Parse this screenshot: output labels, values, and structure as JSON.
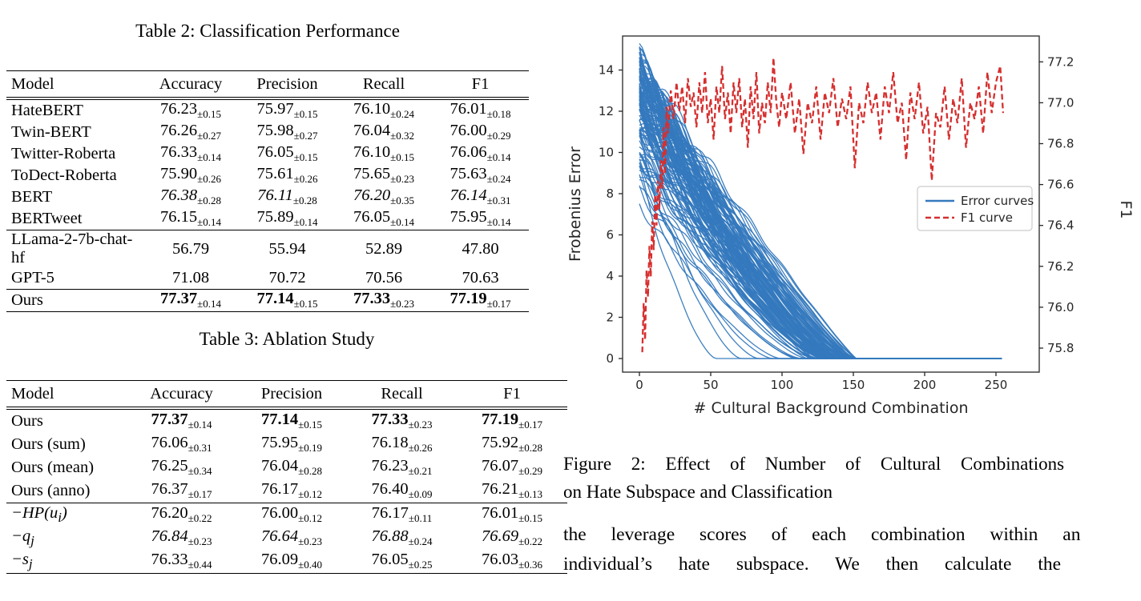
{
  "table2": {
    "caption": "Table 2: Classification Performance",
    "headers": [
      "Model",
      "Accuracy",
      "Precision",
      "Recall",
      "F1"
    ],
    "rows": [
      {
        "model": "HateBERT",
        "style": "normal",
        "cells": [
          [
            "76.23",
            "0.15"
          ],
          [
            "75.97",
            "0.15"
          ],
          [
            "76.10",
            "0.24"
          ],
          [
            "76.01",
            "0.18"
          ]
        ]
      },
      {
        "model": "Twin-BERT",
        "style": "normal",
        "cells": [
          [
            "76.26",
            "0.27"
          ],
          [
            "75.98",
            "0.27"
          ],
          [
            "76.04",
            "0.32"
          ],
          [
            "76.00",
            "0.29"
          ]
        ]
      },
      {
        "model": "Twitter-Roberta",
        "style": "normal",
        "cells": [
          [
            "76.33",
            "0.14"
          ],
          [
            "76.05",
            "0.15"
          ],
          [
            "76.10",
            "0.15"
          ],
          [
            "76.06",
            "0.14"
          ]
        ]
      },
      {
        "model": "ToDect-Roberta",
        "style": "normal",
        "cells": [
          [
            "75.90",
            "0.26"
          ],
          [
            "75.61",
            "0.26"
          ],
          [
            "75.65",
            "0.23"
          ],
          [
            "75.63",
            "0.24"
          ]
        ]
      },
      {
        "model": "BERT",
        "style": "italic",
        "cells": [
          [
            "76.38",
            "0.28"
          ],
          [
            "76.11",
            "0.28"
          ],
          [
            "76.20",
            "0.35"
          ],
          [
            "76.14",
            "0.31"
          ]
        ]
      },
      {
        "model": "BERTweet",
        "style": "normal",
        "cells": [
          [
            "76.15",
            "0.14"
          ],
          [
            "75.89",
            "0.14"
          ],
          [
            "76.05",
            "0.14"
          ],
          [
            "75.95",
            "0.14"
          ]
        ]
      },
      {
        "model": "LLama-2-7b-chat-hf",
        "style": "normal",
        "rule_above": true,
        "cells": [
          [
            "56.79",
            null
          ],
          [
            "55.94",
            null
          ],
          [
            "52.89",
            null
          ],
          [
            "47.80",
            null
          ]
        ]
      },
      {
        "model": "GPT-5",
        "style": "normal",
        "cells": [
          [
            "71.08",
            null
          ],
          [
            "70.72",
            null
          ],
          [
            "70.56",
            null
          ],
          [
            "70.63",
            null
          ]
        ]
      },
      {
        "model": "Ours",
        "style": "bold",
        "rule_above": true,
        "cells": [
          [
            "77.37",
            "0.14"
          ],
          [
            "77.14",
            "0.15"
          ],
          [
            "77.33",
            "0.23"
          ],
          [
            "77.19",
            "0.17"
          ]
        ]
      }
    ]
  },
  "table3": {
    "caption": "Table 3: Ablation Study",
    "headers": [
      "Model",
      "Accuracy",
      "Precision",
      "Recall",
      "F1"
    ],
    "rows": [
      {
        "model": "Ours",
        "style": "bold",
        "cells": [
          [
            "77.37",
            "0.14"
          ],
          [
            "77.14",
            "0.15"
          ],
          [
            "77.33",
            "0.23"
          ],
          [
            "77.19",
            "0.17"
          ]
        ]
      },
      {
        "model": "Ours (sum)",
        "style": "normal",
        "cells": [
          [
            "76.06",
            "0.31"
          ],
          [
            "75.95",
            "0.19"
          ],
          [
            "76.18",
            "0.26"
          ],
          [
            "75.92",
            "0.28"
          ]
        ]
      },
      {
        "model": "Ours (mean)",
        "style": "normal",
        "cells": [
          [
            "76.25",
            "0.34"
          ],
          [
            "76.04",
            "0.28"
          ],
          [
            "76.23",
            "0.21"
          ],
          [
            "76.07",
            "0.29"
          ]
        ]
      },
      {
        "model": "Ours (anno)",
        "style": "normal",
        "cells": [
          [
            "76.37",
            "0.17"
          ],
          [
            "76.17",
            "0.12"
          ],
          [
            "76.40",
            "0.09"
          ],
          [
            "76.21",
            "0.13"
          ]
        ]
      },
      {
        "model": "−HP(u_i)",
        "math": true,
        "style": "normal",
        "rule_above": true,
        "cells": [
          [
            "76.20",
            "0.22"
          ],
          [
            "76.00",
            "0.12"
          ],
          [
            "76.17",
            "0.11"
          ],
          [
            "76.01",
            "0.15"
          ]
        ]
      },
      {
        "model": "−q_j",
        "math": true,
        "style": "italic",
        "cells": [
          [
            "76.84",
            "0.23"
          ],
          [
            "76.64",
            "0.23"
          ],
          [
            "76.88",
            "0.24"
          ],
          [
            "76.69",
            "0.22"
          ]
        ]
      },
      {
        "model": "−s_j",
        "math": true,
        "style": "normal",
        "cells": [
          [
            "76.33",
            "0.44"
          ],
          [
            "76.09",
            "0.40"
          ],
          [
            "76.05",
            "0.25"
          ],
          [
            "76.03",
            "0.36"
          ]
        ]
      }
    ]
  },
  "figure": {
    "caption_line1": "Figure 2: Effect of Number of Cultural Combinations",
    "caption_line2": "on Hate Subspace and Classification"
  },
  "body_text": {
    "line1": "the leverage scores of each combination within an",
    "line2": "individual’s hate subspace. We then calculate the"
  },
  "chart_data": {
    "type": "line",
    "xlabel": "# Cultural Background Combination",
    "ylabel_left": "Frobenius Error",
    "ylabel_right": "F1",
    "x_ticks": [
      0,
      50,
      100,
      150,
      200,
      250
    ],
    "y_ticks_left": [
      0,
      2,
      4,
      6,
      8,
      10,
      12,
      14
    ],
    "y_ticks_right": [
      75.8,
      76.0,
      76.2,
      76.4,
      76.6,
      76.8,
      77.0,
      77.2
    ],
    "xlim": [
      -12,
      283
    ],
    "ylim_left": [
      -0.7,
      15.6
    ],
    "ylim_right": [
      75.68,
      77.32
    ],
    "grid": false,
    "legend_position": "center-right",
    "legend": [
      {
        "label": "Error curves",
        "color": "#3579be",
        "dash": false
      },
      {
        "label": "F1 curve",
        "color": "#d62f2f",
        "dash": true
      }
    ],
    "colors": {
      "error_curves": "#3579be",
      "f1_curve": "#d62f2f",
      "axis": "#262626"
    },
    "error_curves": {
      "note": "Dense family of ~130 monotonically decreasing Frobenius-error curves: start between ~7.3 and ~14.9 at x=0, decay to 0 between x≈40 and x≈150 (higher-starting curves reach zero later), then remain flat at 0 through x≈255.",
      "count": 130,
      "seed": 7,
      "x_step": 2,
      "x_max": 255,
      "start_range": [
        7.3,
        14.9
      ],
      "end_x_main": [
        100,
        152
      ],
      "end_x_early": [
        40,
        100
      ],
      "early_fraction": 0.08
    },
    "f1_curve": {
      "note": "Noisy dashed F1 curve: climbs from ~75.78 at x≈2 to ~77.0 by x≈20, then fluctuates between ~76.6 and ~77.2 out to x=255.",
      "points": [
        [
          2,
          75.78
        ],
        [
          3,
          76.02
        ],
        [
          4,
          75.84
        ],
        [
          5,
          76.18
        ],
        [
          6,
          76.05
        ],
        [
          7,
          76.3
        ],
        [
          8,
          76.15
        ],
        [
          9,
          76.42
        ],
        [
          10,
          76.28
        ],
        [
          11,
          76.55
        ],
        [
          12,
          76.4
        ],
        [
          13,
          76.62
        ],
        [
          14,
          76.48
        ],
        [
          15,
          76.72
        ],
        [
          16,
          76.58
        ],
        [
          17,
          76.88
        ],
        [
          18,
          76.65
        ],
        [
          19,
          76.98
        ],
        [
          20,
          76.85
        ],
        [
          22,
          77.06
        ],
        [
          24,
          76.92
        ],
        [
          26,
          77.1
        ],
        [
          28,
          76.96
        ],
        [
          30,
          77.08
        ],
        [
          32,
          76.9
        ],
        [
          34,
          77.12
        ],
        [
          36,
          76.98
        ],
        [
          38,
          77.05
        ],
        [
          40,
          76.88
        ],
        [
          42,
          77.1
        ],
        [
          44,
          76.95
        ],
        [
          46,
          77.15
        ],
        [
          48,
          76.9
        ],
        [
          50,
          77.02
        ],
        [
          52,
          76.82
        ],
        [
          54,
          77.08
        ],
        [
          56,
          76.95
        ],
        [
          58,
          77.18
        ],
        [
          60,
          76.92
        ],
        [
          62,
          77.05
        ],
        [
          64,
          76.85
        ],
        [
          66,
          77.1
        ],
        [
          68,
          76.95
        ],
        [
          70,
          77.12
        ],
        [
          72,
          76.88
        ],
        [
          74,
          77.02
        ],
        [
          76,
          76.78
        ],
        [
          78,
          77.08
        ],
        [
          80,
          76.92
        ],
        [
          82,
          77.15
        ],
        [
          84,
          76.85
        ],
        [
          86,
          77.0
        ],
        [
          88,
          76.9
        ],
        [
          90,
          77.1
        ],
        [
          92,
          76.95
        ],
        [
          94,
          77.22
        ],
        [
          96,
          77.0
        ],
        [
          98,
          76.88
        ],
        [
          100,
          77.05
        ],
        [
          103,
          76.92
        ],
        [
          106,
          77.1
        ],
        [
          109,
          76.85
        ],
        [
          112,
          77.02
        ],
        [
          115,
          76.75
        ],
        [
          118,
          77.0
        ],
        [
          121,
          76.9
        ],
        [
          124,
          77.08
        ],
        [
          127,
          76.82
        ],
        [
          130,
          77.05
        ],
        [
          133,
          76.95
        ],
        [
          136,
          77.12
        ],
        [
          139,
          76.88
        ],
        [
          142,
          77.02
        ],
        [
          145,
          76.92
        ],
        [
          148,
          77.08
        ],
        [
          151,
          76.68
        ],
        [
          154,
          77.0
        ],
        [
          157,
          76.9
        ],
        [
          160,
          77.1
        ],
        [
          163,
          76.95
        ],
        [
          166,
          77.05
        ],
        [
          169,
          76.82
        ],
        [
          172,
          77.08
        ],
        [
          175,
          76.95
        ],
        [
          178,
          77.15
        ],
        [
          181,
          76.9
        ],
        [
          184,
          77.0
        ],
        [
          187,
          76.72
        ],
        [
          190,
          77.05
        ],
        [
          193,
          76.92
        ],
        [
          196,
          77.1
        ],
        [
          199,
          76.85
        ],
        [
          202,
          76.98
        ],
        [
          205,
          76.62
        ],
        [
          208,
          76.95
        ],
        [
          211,
          76.88
        ],
        [
          214,
          77.08
        ],
        [
          217,
          76.82
        ],
        [
          220,
          77.02
        ],
        [
          223,
          76.9
        ],
        [
          226,
          77.12
        ],
        [
          229,
          76.78
        ],
        [
          232,
          77.0
        ],
        [
          235,
          76.92
        ],
        [
          238,
          77.08
        ],
        [
          241,
          76.85
        ],
        [
          244,
          77.15
        ],
        [
          247,
          76.95
        ],
        [
          250,
          77.1
        ],
        [
          253,
          77.18
        ],
        [
          255,
          76.95
        ]
      ]
    }
  }
}
